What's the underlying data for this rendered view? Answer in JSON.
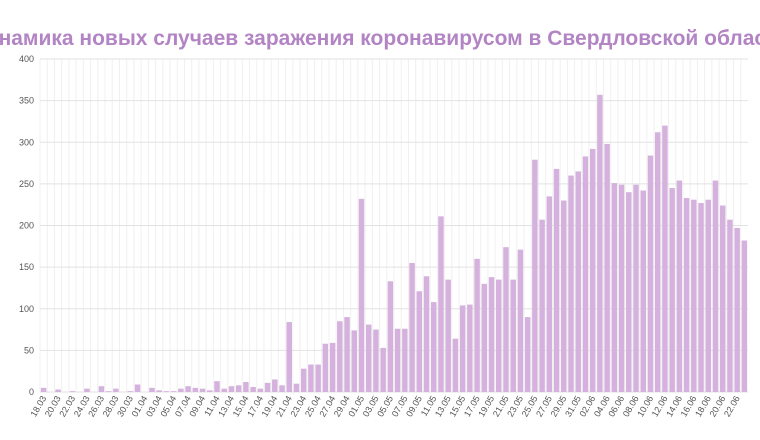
{
  "chart_data": {
    "type": "bar",
    "title": "Динамика новых случаев заражения коронавирусом в Свердловской области",
    "categories": [
      "18.03",
      null,
      "20.03",
      null,
      "22.03",
      null,
      "24.03",
      null,
      "26.03",
      null,
      "28.03",
      null,
      "30.03",
      null,
      "01.04",
      null,
      "03.04",
      null,
      "05.04",
      null,
      "07.04",
      null,
      "09.04",
      null,
      "11.04",
      null,
      "13.04",
      null,
      "15.04",
      null,
      "17.04",
      null,
      "19.04",
      null,
      "21.04",
      null,
      "23.04",
      null,
      "25.04",
      null,
      "27.04",
      null,
      "29.04",
      null,
      "01.05",
      null,
      "03.05",
      null,
      "05.05",
      null,
      "07.05",
      null,
      "09.05",
      null,
      "11.05",
      null,
      "13.05",
      null,
      "15.05",
      null,
      "17.05",
      null,
      "19.05",
      null,
      "21.05",
      null,
      "23.05",
      null,
      "25.05",
      null,
      "27.05",
      null,
      "29.05",
      null,
      "31.05",
      null,
      "02.06",
      null,
      "04.06",
      null,
      "06.06",
      null,
      "08.06",
      null,
      "10.06",
      null,
      "12.06",
      null,
      "14.06",
      null,
      "16.06",
      null,
      "18.06",
      null,
      "20.06",
      null,
      "22.06",
      null
    ],
    "values": [
      5,
      0,
      3,
      0,
      1,
      0,
      4,
      0,
      7,
      1,
      4,
      0,
      1,
      9,
      0,
      5,
      2,
      1,
      1,
      4,
      7,
      5,
      4,
      2,
      13,
      4,
      7,
      8,
      12,
      6,
      4,
      11,
      15,
      8,
      84,
      10,
      28,
      33,
      33,
      58,
      59,
      85,
      90,
      74,
      232,
      81,
      75,
      53,
      133,
      76,
      76,
      155,
      121,
      139,
      108,
      211,
      135,
      64,
      104,
      105,
      160,
      130,
      138,
      135,
      174,
      135,
      171,
      90,
      279,
      207,
      235,
      268,
      230,
      260,
      265,
      283,
      292,
      357,
      298,
      251,
      249,
      240,
      249,
      242,
      284,
      312,
      320,
      245,
      254,
      233,
      231,
      227,
      231,
      254,
      224,
      207,
      197,
      182
    ],
    "color": "#d5b2dd",
    "ylim": [
      0,
      400
    ],
    "yticks": [
      0,
      50,
      100,
      150,
      200,
      250,
      300,
      350,
      400
    ],
    "grid": true
  }
}
